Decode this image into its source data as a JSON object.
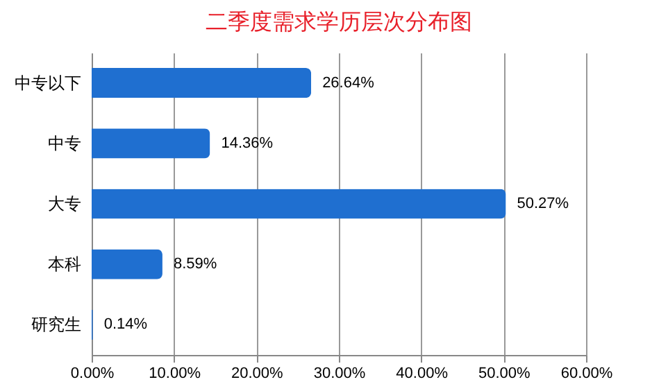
{
  "chart_data": {
    "type": "bar",
    "title": "二季度需求学历层次分布图",
    "orientation": "horizontal",
    "categories": [
      "中专以下",
      "中专",
      "大专",
      "本科",
      "研究生"
    ],
    "values": [
      26.64,
      14.36,
      50.27,
      8.59,
      0.14
    ],
    "color": "#1f6fd0",
    "value_labels": [
      "26.64%",
      "14.36%",
      "50.27%",
      "8.59%",
      "0.14%"
    ],
    "xlim": [
      0,
      60
    ],
    "xticks": [
      {
        "value": 0,
        "label": "0.00%"
      },
      {
        "value": 10,
        "label": "10.00%"
      },
      {
        "value": 20,
        "label": "20.00%"
      },
      {
        "value": 30,
        "label": "30.00%"
      },
      {
        "value": 40,
        "label": "40.00%"
      },
      {
        "value": 50,
        "label": "50.00%"
      },
      {
        "value": 60,
        "label": "60.00%"
      }
    ],
    "grid": "x"
  }
}
